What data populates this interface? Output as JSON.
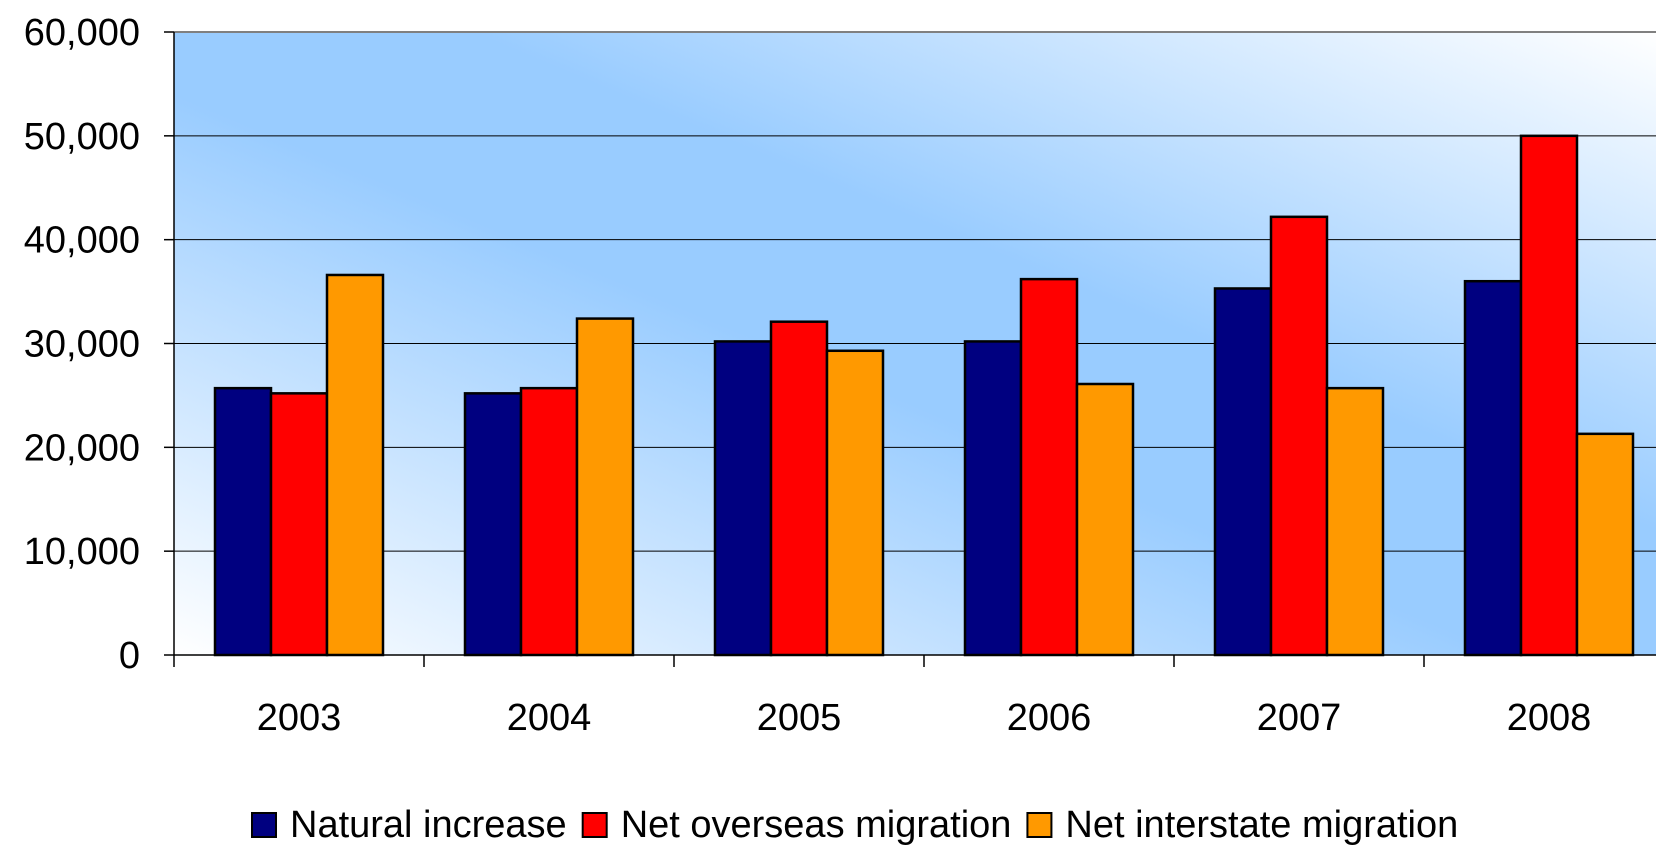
{
  "chart_data": {
    "type": "bar",
    "title": "",
    "xlabel": "",
    "ylabel": "",
    "categories": [
      "2003",
      "2004",
      "2005",
      "2006",
      "2007",
      "2008"
    ],
    "ylim": [
      0,
      60000
    ],
    "yticks": [
      "0",
      "10,000",
      "20,000",
      "30,000",
      "40,000",
      "50,000",
      "60,000"
    ],
    "grid": true,
    "legend_position": "bottom",
    "series": [
      {
        "name": "Natural increase",
        "color": "#000080",
        "values": [
          25700,
          25200,
          30200,
          30200,
          35300,
          36000
        ]
      },
      {
        "name": "Net overseas migration",
        "color": "#ff0000",
        "values": [
          25200,
          25700,
          32100,
          36200,
          42200,
          50000
        ]
      },
      {
        "name": "Net interstate migration",
        "color": "#ff9900",
        "values": [
          36600,
          32400,
          29300,
          26100,
          25700,
          21300
        ]
      }
    ]
  }
}
